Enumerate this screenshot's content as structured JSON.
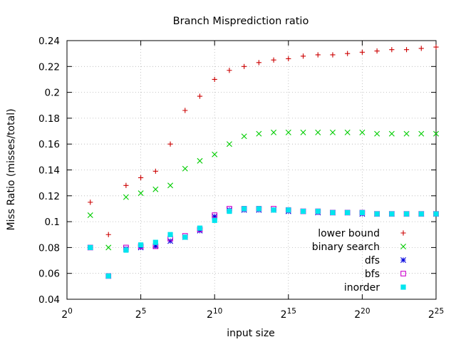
{
  "chart_data": {
    "type": "scatter",
    "title": "Branch Misprediction ratio",
    "xlabel": "input size",
    "ylabel": "Miss Ratio (misses/total)",
    "xscale": "log2",
    "xlim": [
      0,
      25
    ],
    "ylim": [
      0.04,
      0.24
    ],
    "grid": true,
    "legend_position": "bottom-right",
    "x_ticks": [
      {
        "base": "2",
        "exp": "0",
        "value": 0
      },
      {
        "base": "2",
        "exp": "5",
        "value": 5
      },
      {
        "base": "2",
        "exp": "10",
        "value": 10
      },
      {
        "base": "2",
        "exp": "15",
        "value": 15
      },
      {
        "base": "2",
        "exp": "20",
        "value": 20
      },
      {
        "base": "2",
        "exp": "25",
        "value": 25
      }
    ],
    "y_ticks": [
      {
        "label": "0.04",
        "value": 0.04
      },
      {
        "label": "0.06",
        "value": 0.06
      },
      {
        "label": "0.08",
        "value": 0.08
      },
      {
        "label": "0.1",
        "value": 0.1
      },
      {
        "label": "0.12",
        "value": 0.12
      },
      {
        "label": "0.14",
        "value": 0.14
      },
      {
        "label": "0.16",
        "value": 0.16
      },
      {
        "label": "0.18",
        "value": 0.18
      },
      {
        "label": "0.2",
        "value": 0.2
      },
      {
        "label": "0.22",
        "value": 0.22
      },
      {
        "label": "0.24",
        "value": 0.24
      }
    ],
    "x": [
      1.58,
      2.81,
      4,
      5,
      6,
      7,
      8,
      9,
      10,
      11,
      12,
      13,
      14,
      15,
      16,
      17,
      18,
      19,
      20,
      21,
      22,
      23,
      24,
      25
    ],
    "series": [
      {
        "name": "lower bound",
        "marker": "plus",
        "color": "#cc0000",
        "values": [
          0.115,
          0.09,
          0.128,
          0.134,
          0.139,
          0.16,
          0.186,
          0.197,
          0.21,
          0.217,
          0.22,
          0.223,
          0.225,
          0.226,
          0.228,
          0.229,
          0.229,
          0.23,
          0.231,
          0.232,
          0.233,
          0.233,
          0.234,
          0.235
        ]
      },
      {
        "name": "binary search",
        "marker": "cross",
        "color": "#00cc00",
        "values": [
          0.105,
          0.08,
          0.119,
          0.122,
          0.125,
          0.128,
          0.141,
          0.147,
          0.152,
          0.16,
          0.166,
          0.168,
          0.169,
          0.169,
          0.169,
          0.169,
          0.169,
          0.169,
          0.169,
          0.168,
          0.168,
          0.168,
          0.168,
          0.168
        ]
      },
      {
        "name": "dfs",
        "marker": "star",
        "color": "#0000dd",
        "values": [
          0.08,
          0.058,
          0.079,
          0.08,
          0.081,
          0.085,
          0.088,
          0.093,
          0.104,
          0.109,
          0.109,
          0.109,
          0.109,
          0.108,
          0.108,
          0.107,
          0.107,
          0.107,
          0.106,
          0.106,
          0.106,
          0.106,
          0.106,
          0.106
        ]
      },
      {
        "name": "bfs",
        "marker": "open-square",
        "color": "#cc00cc",
        "values": [
          0.08,
          0.058,
          0.08,
          0.081,
          0.081,
          0.087,
          0.089,
          0.094,
          0.105,
          0.11,
          0.11,
          0.11,
          0.11,
          0.109,
          0.108,
          0.108,
          0.107,
          0.107,
          0.107,
          0.106,
          0.106,
          0.106,
          0.106,
          0.106
        ]
      },
      {
        "name": "inorder",
        "marker": "filled-square",
        "color": "#00e5ee",
        "values": [
          0.08,
          0.058,
          0.078,
          0.082,
          0.084,
          0.09,
          0.088,
          0.095,
          0.101,
          0.108,
          0.11,
          0.11,
          0.109,
          0.109,
          0.108,
          0.108,
          0.107,
          0.107,
          0.107,
          0.106,
          0.106,
          0.106,
          0.106,
          0.106
        ]
      }
    ]
  }
}
